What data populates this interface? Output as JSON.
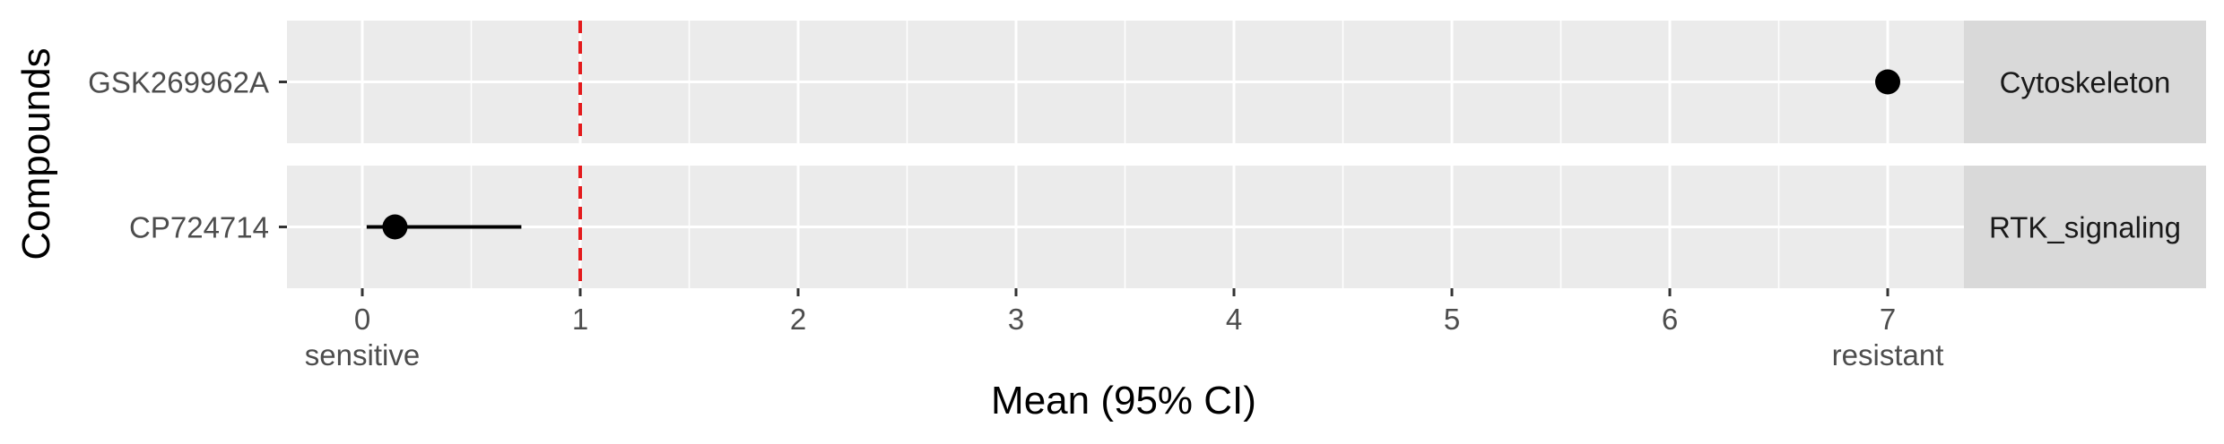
{
  "chart_data": {
    "type": "scatter",
    "xlabel": "Mean (95% CI)",
    "ylabel": "Compounds",
    "xlim": [
      -0.35,
      8.35
    ],
    "x_ticks": [
      0,
      1,
      2,
      3,
      4,
      5,
      6,
      7
    ],
    "x_tick_sublabels": [
      {
        "x": 0,
        "label": "sensitive"
      },
      {
        "x": 7,
        "label": "resistant"
      }
    ],
    "reference_line": {
      "x": 1,
      "style": "dashed",
      "color": "#e41a1c"
    },
    "grid": true,
    "panel_background": "#ebebeb",
    "strip_background": "#d9d9d9",
    "point_color": "#000000",
    "facets": [
      {
        "label": "Cytoskeleton",
        "compound": "GSK269962A",
        "mean": 7.0,
        "ci_low": 7.0,
        "ci_high": 7.0
      },
      {
        "label": "RTK_signaling",
        "compound": "CP724714",
        "mean": 0.15,
        "ci_low": 0.02,
        "ci_high": 0.73
      }
    ]
  }
}
